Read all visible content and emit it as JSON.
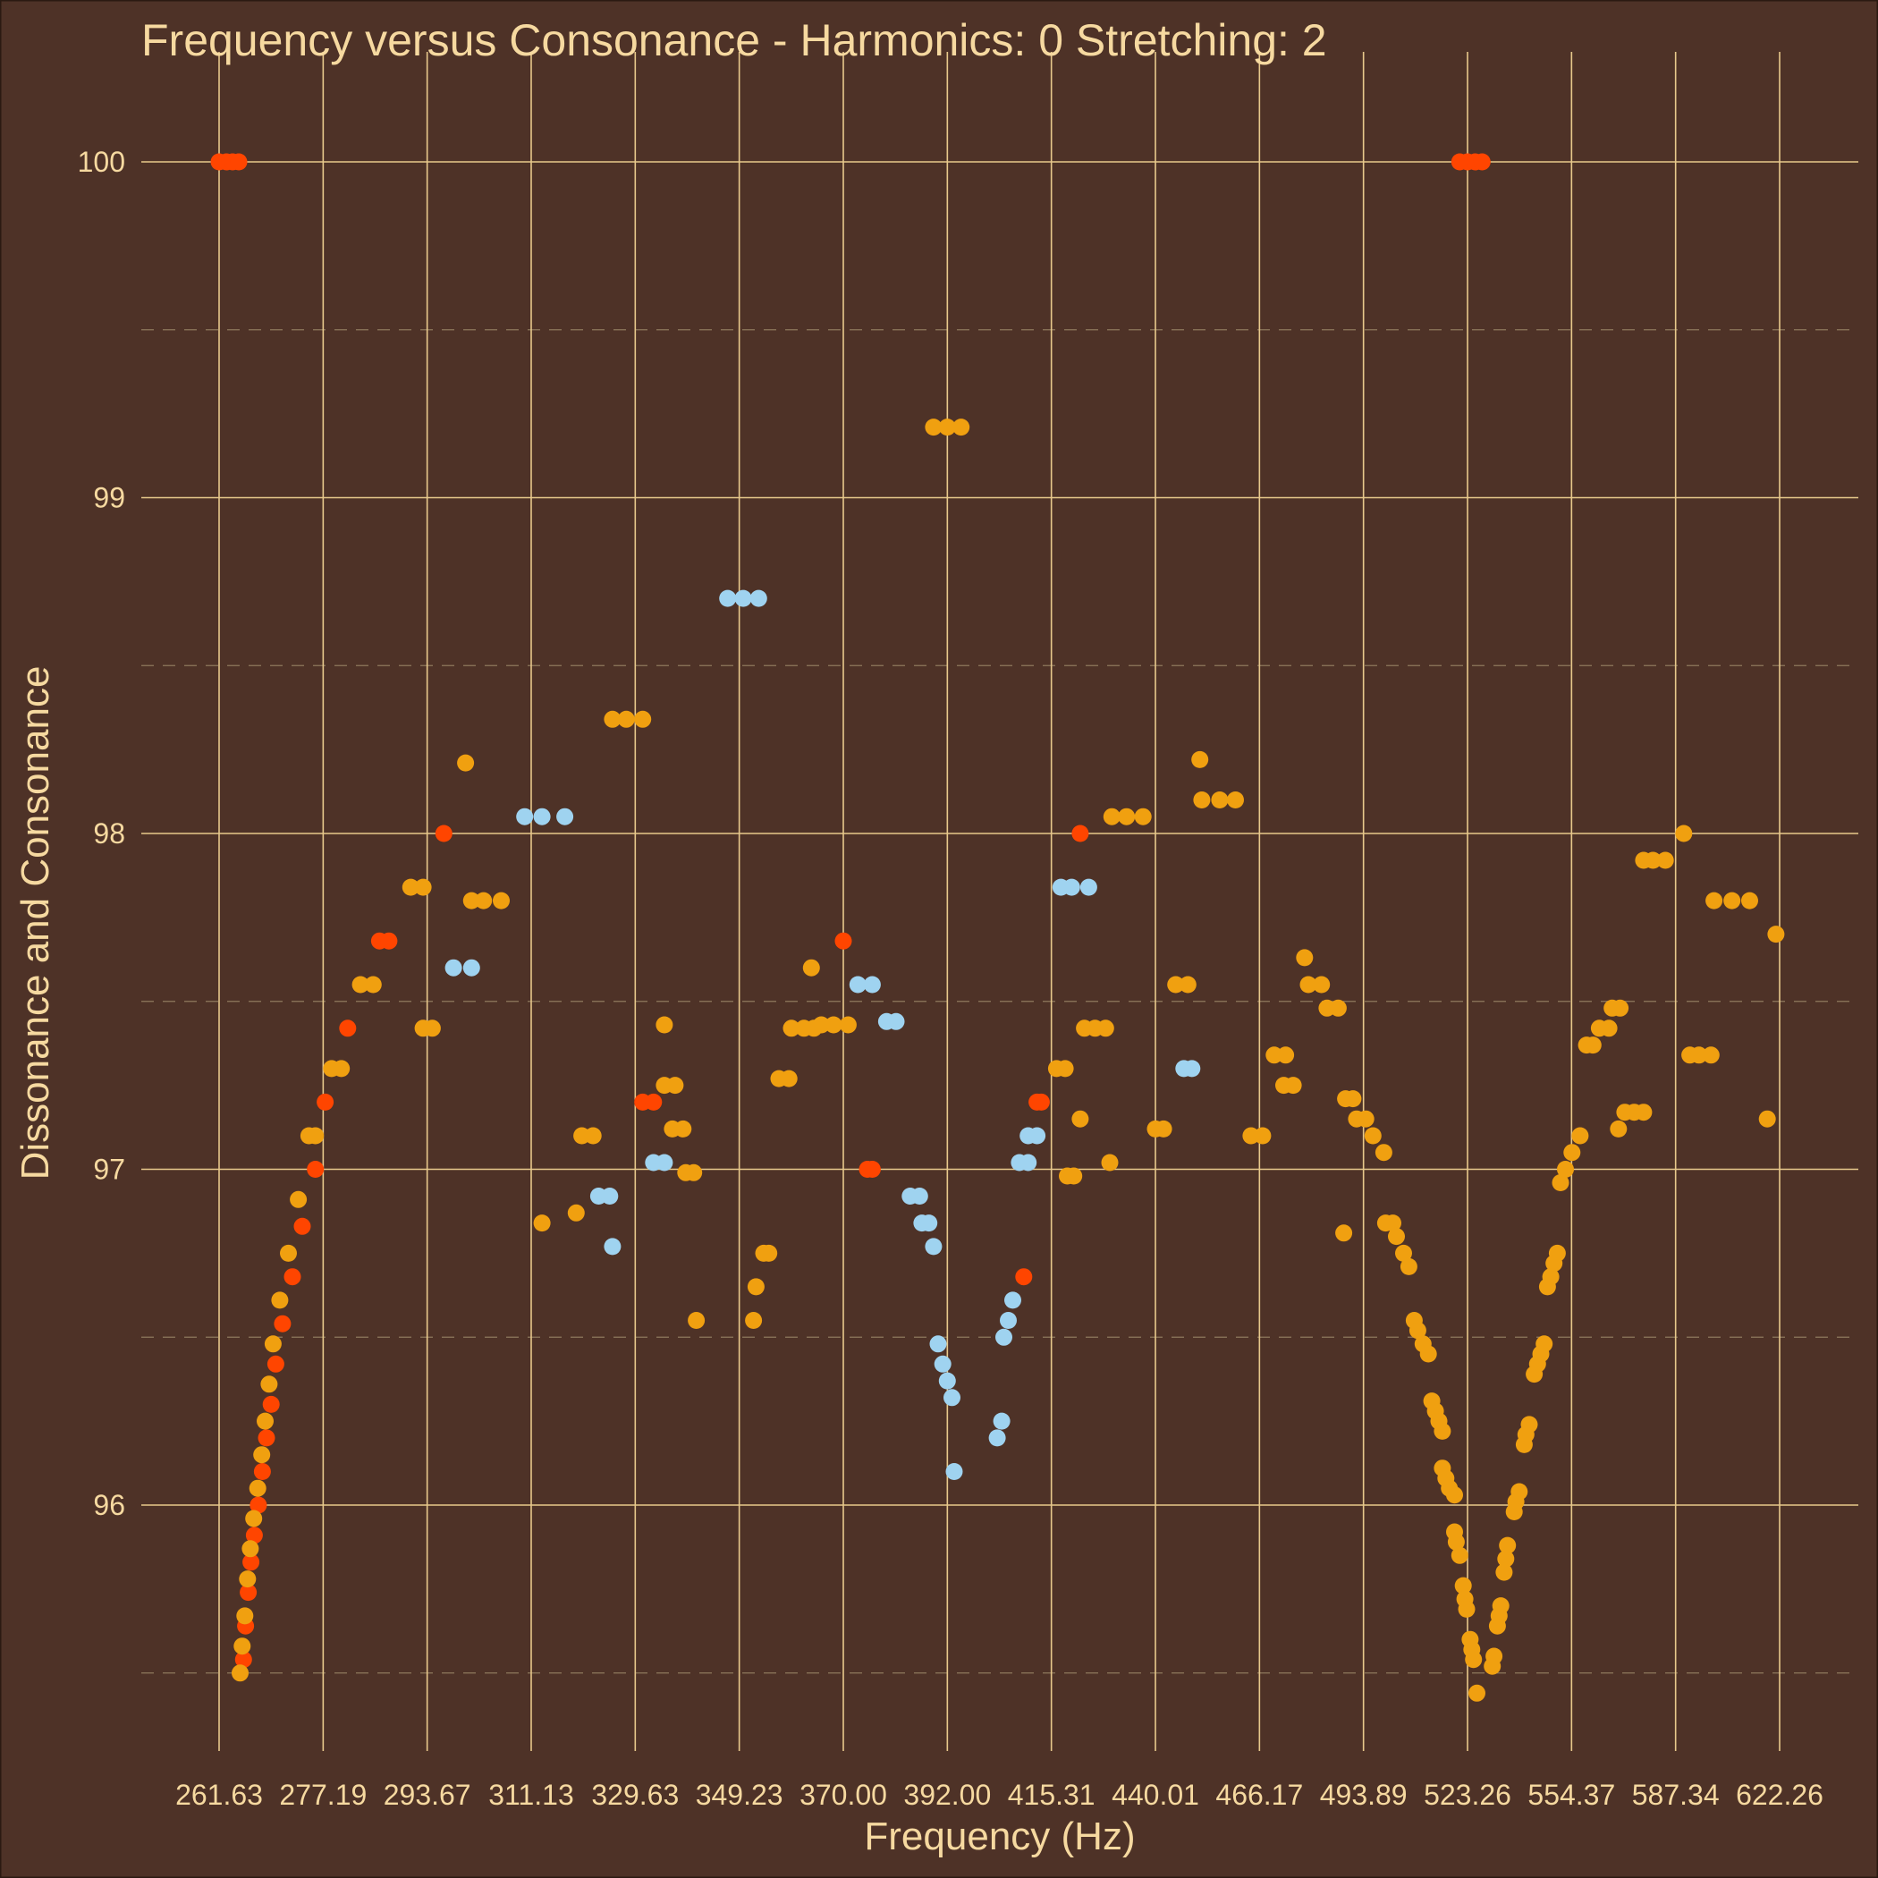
{
  "chart_data": {
    "type": "scatter",
    "title": "Frequency versus Consonance - Harmonics: 0 Stretching: 2",
    "xlabel": "Frequency (Hz)",
    "ylabel": "Dissonance and Consonance",
    "x_scale": "log",
    "x_ticks": [
      "261.63",
      "277.19",
      "293.67",
      "311.13",
      "329.63",
      "349.23",
      "370.00",
      "392.00",
      "415.31",
      "440.01",
      "466.17",
      "493.89",
      "523.26",
      "554.37",
      "587.34",
      "622.26"
    ],
    "y_ticks": [
      96,
      97,
      98,
      99,
      100
    ],
    "ylim": [
      95.3,
      100.2
    ],
    "xlim": [
      256.5,
      643.5
    ],
    "grid": true,
    "legend": "none",
    "colors": {
      "background": "#4e3227",
      "text": "#f6d9a0",
      "grid": "#e8c98c",
      "red": "#ff4500",
      "orange": "#f0a010",
      "blue": "#9fd3f0"
    },
    "series": [
      {
        "color_key": "red",
        "points": [
          [
            261.63,
            100
          ],
          [
            262.7,
            100
          ],
          [
            263.6,
            100
          ],
          [
            264.5,
            100
          ],
          [
            265.2,
            95.54
          ],
          [
            265.5,
            95.64
          ],
          [
            265.9,
            95.74
          ],
          [
            266.3,
            95.83
          ],
          [
            266.8,
            95.91
          ],
          [
            267.4,
            96
          ],
          [
            268.0,
            96.1
          ],
          [
            268.6,
            96.2
          ],
          [
            269.3,
            96.3
          ],
          [
            270.0,
            96.42
          ],
          [
            271.0,
            96.54
          ],
          [
            272.5,
            96.68
          ],
          [
            274.0,
            96.83
          ],
          [
            276.0,
            97
          ],
          [
            277.5,
            97.2
          ],
          [
            281.0,
            97.42
          ],
          [
            286.0,
            97.68
          ],
          [
            287.5,
            97.68
          ],
          [
            296.4,
            98
          ],
          [
            331.0,
            97.2
          ],
          [
            333.0,
            97.2
          ],
          [
            370.0,
            97.68
          ],
          [
            375.0,
            97
          ],
          [
            376.0,
            97
          ],
          [
            409.0,
            96.68
          ],
          [
            412.0,
            97.2
          ],
          [
            413.0,
            97.2
          ],
          [
            422.0,
            98
          ],
          [
            521.0,
            100
          ],
          [
            523.26,
            100
          ],
          [
            525.5,
            100
          ],
          [
            527.5,
            100
          ]
        ]
      },
      {
        "color_key": "orange",
        "points": [
          [
            264.7,
            95.5
          ],
          [
            265.0,
            95.58
          ],
          [
            265.4,
            95.67
          ],
          [
            265.8,
            95.78
          ],
          [
            266.2,
            95.87
          ],
          [
            266.7,
            95.96
          ],
          [
            267.3,
            96.05
          ],
          [
            267.9,
            96.15
          ],
          [
            268.4,
            96.25
          ],
          [
            269.0,
            96.36
          ],
          [
            269.6,
            96.48
          ],
          [
            270.6,
            96.61
          ],
          [
            271.9,
            96.75
          ],
          [
            273.4,
            96.91
          ],
          [
            275.0,
            97.1
          ],
          [
            276.0,
            97.1
          ],
          [
            278.5,
            97.3
          ],
          [
            280.0,
            97.3
          ],
          [
            283.0,
            97.55
          ],
          [
            285.0,
            97.55
          ],
          [
            291.0,
            97.84
          ],
          [
            293.0,
            97.84
          ],
          [
            293.0,
            97.42
          ],
          [
            294.5,
            97.42
          ],
          [
            300.0,
            98.21
          ],
          [
            301.0,
            97.8
          ],
          [
            303.0,
            97.8
          ],
          [
            306.0,
            97.8
          ],
          [
            313.0,
            96.84
          ],
          [
            319.0,
            96.87
          ],
          [
            320.0,
            97.1
          ],
          [
            322.0,
            97.1
          ],
          [
            325.5,
            98.34
          ],
          [
            328.0,
            98.34
          ],
          [
            331.0,
            98.34
          ],
          [
            335.0,
            97.43
          ],
          [
            335.0,
            97.25
          ],
          [
            337.0,
            97.25
          ],
          [
            336.5,
            97.12
          ],
          [
            338.5,
            97.12
          ],
          [
            339.0,
            96.99
          ],
          [
            340.5,
            96.99
          ],
          [
            341.0,
            96.55
          ],
          [
            352.0,
            96.55
          ],
          [
            352.5,
            96.65
          ],
          [
            354.0,
            96.75
          ],
          [
            355.0,
            96.75
          ],
          [
            357.0,
            97.27
          ],
          [
            359.0,
            97.27
          ],
          [
            359.5,
            97.42
          ],
          [
            362.0,
            97.42
          ],
          [
            364.0,
            97.42
          ],
          [
            363.5,
            97.6
          ],
          [
            365.5,
            97.43
          ],
          [
            368.0,
            97.43
          ],
          [
            371.0,
            97.43
          ],
          [
            389.0,
            99.21
          ],
          [
            392.0,
            99.21
          ],
          [
            395.0,
            99.21
          ],
          [
            419.0,
            96.98
          ],
          [
            420.5,
            96.98
          ],
          [
            416.5,
            97.3
          ],
          [
            418.5,
            97.3
          ],
          [
            422.0,
            97.15
          ],
          [
            423.0,
            97.42
          ],
          [
            425.5,
            97.42
          ],
          [
            428.0,
            97.42
          ],
          [
            429.0,
            97.02
          ],
          [
            429.5,
            98.05
          ],
          [
            433.0,
            98.05
          ],
          [
            437.0,
            98.05
          ],
          [
            440.0,
            97.12
          ],
          [
            442.0,
            97.12
          ],
          [
            445.0,
            97.55
          ],
          [
            448.0,
            97.55
          ],
          [
            451.0,
            98.22
          ],
          [
            451.5,
            98.1
          ],
          [
            456.0,
            98.1
          ],
          [
            460.0,
            98.1
          ],
          [
            464.0,
            97.1
          ],
          [
            467.0,
            97.1
          ],
          [
            470.0,
            97.34
          ],
          [
            473.0,
            97.34
          ],
          [
            472.5,
            97.25
          ],
          [
            475.0,
            97.25
          ],
          [
            478.0,
            97.63
          ],
          [
            479.0,
            97.55
          ],
          [
            482.5,
            97.55
          ],
          [
            484.0,
            97.48
          ],
          [
            487.0,
            97.48
          ],
          [
            488.5,
            96.81
          ],
          [
            489.0,
            97.21
          ],
          [
            491.0,
            97.21
          ],
          [
            492.0,
            97.15
          ],
          [
            494.5,
            97.15
          ],
          [
            496.5,
            97.1
          ],
          [
            499.5,
            97.05
          ],
          [
            500.0,
            96.84
          ],
          [
            502.0,
            96.84
          ],
          [
            503.0,
            96.8
          ],
          [
            505.0,
            96.75
          ],
          [
            506.5,
            96.71
          ],
          [
            508.0,
            96.55
          ],
          [
            509.0,
            96.52
          ],
          [
            510.5,
            96.48
          ],
          [
            512.0,
            96.45
          ],
          [
            513.0,
            96.31
          ],
          [
            514.0,
            96.28
          ],
          [
            515.0,
            96.25
          ],
          [
            516.0,
            96.22
          ],
          [
            516.0,
            96.11
          ],
          [
            517.0,
            96.08
          ],
          [
            518.0,
            96.05
          ],
          [
            519.5,
            96.03
          ],
          [
            519.5,
            95.92
          ],
          [
            520.0,
            95.89
          ],
          [
            521.0,
            95.85
          ],
          [
            522.0,
            95.76
          ],
          [
            522.5,
            95.72
          ],
          [
            523.0,
            95.69
          ],
          [
            524.0,
            95.6
          ],
          [
            524.5,
            95.57
          ],
          [
            525.0,
            95.54
          ],
          [
            526.0,
            95.44
          ],
          [
            530.5,
            95.52
          ],
          [
            531.0,
            95.55
          ],
          [
            532.0,
            95.64
          ],
          [
            532.5,
            95.67
          ],
          [
            533.0,
            95.7
          ],
          [
            534.0,
            95.8
          ],
          [
            534.5,
            95.84
          ],
          [
            535.0,
            95.88
          ],
          [
            537.0,
            95.98
          ],
          [
            537.5,
            96.01
          ],
          [
            538.5,
            96.04
          ],
          [
            540.0,
            96.18
          ],
          [
            540.5,
            96.21
          ],
          [
            541.5,
            96.24
          ],
          [
            543.0,
            96.39
          ],
          [
            544.0,
            96.42
          ],
          [
            545.0,
            96.45
          ],
          [
            546.0,
            96.48
          ],
          [
            547.0,
            96.65
          ],
          [
            548.0,
            96.68
          ],
          [
            549.0,
            96.72
          ],
          [
            550.0,
            96.75
          ],
          [
            551.0,
            96.96
          ],
          [
            552.5,
            97
          ],
          [
            554.5,
            97.05
          ],
          [
            557.0,
            97.1
          ],
          [
            559.0,
            97.37
          ],
          [
            561.0,
            97.37
          ],
          [
            563.0,
            97.42
          ],
          [
            566.0,
            97.42
          ],
          [
            567.0,
            97.48
          ],
          [
            569.5,
            97.48
          ],
          [
            569.0,
            97.12
          ],
          [
            571.0,
            97.17
          ],
          [
            574.0,
            97.17
          ],
          [
            577.0,
            97.17
          ],
          [
            577.0,
            97.92
          ],
          [
            580.0,
            97.92
          ],
          [
            584.0,
            97.92
          ],
          [
            590.0,
            98
          ],
          [
            592.0,
            97.34
          ],
          [
            595.0,
            97.34
          ],
          [
            599.0,
            97.34
          ],
          [
            600.0,
            97.8
          ],
          [
            606.0,
            97.8
          ],
          [
            612.0,
            97.8
          ],
          [
            618.0,
            97.15
          ],
          [
            621.0,
            97.7
          ]
        ]
      },
      {
        "color_key": "blue",
        "points": [
          [
            298.0,
            97.6
          ],
          [
            301.0,
            97.6
          ],
          [
            310.0,
            98.05
          ],
          [
            313.0,
            98.05
          ],
          [
            317.0,
            98.05
          ],
          [
            323.0,
            96.92
          ],
          [
            325.0,
            96.92
          ],
          [
            325.5,
            96.77
          ],
          [
            333.0,
            97.02
          ],
          [
            335.0,
            97.02
          ],
          [
            347.0,
            98.7
          ],
          [
            350.0,
            98.7
          ],
          [
            353.0,
            98.7
          ],
          [
            373.0,
            97.55
          ],
          [
            376.0,
            97.55
          ],
          [
            379.0,
            97.44
          ],
          [
            381.0,
            97.44
          ],
          [
            384.0,
            96.92
          ],
          [
            386.0,
            96.92
          ],
          [
            386.5,
            96.84
          ],
          [
            388.0,
            96.84
          ],
          [
            389.0,
            96.77
          ],
          [
            390.0,
            96.48
          ],
          [
            391.0,
            96.42
          ],
          [
            392.0,
            96.37
          ],
          [
            393.0,
            96.32
          ],
          [
            393.5,
            96.1
          ],
          [
            403.0,
            96.2
          ],
          [
            404.0,
            96.25
          ],
          [
            404.5,
            96.5
          ],
          [
            405.5,
            96.55
          ],
          [
            406.5,
            96.61
          ],
          [
            408.0,
            97.02
          ],
          [
            410.0,
            97.02
          ],
          [
            410.0,
            97.1
          ],
          [
            412.0,
            97.1
          ],
          [
            417.5,
            97.84
          ],
          [
            420.0,
            97.84
          ],
          [
            424.0,
            97.84
          ],
          [
            447.0,
            97.3
          ],
          [
            449.0,
            97.3
          ]
        ]
      }
    ]
  }
}
